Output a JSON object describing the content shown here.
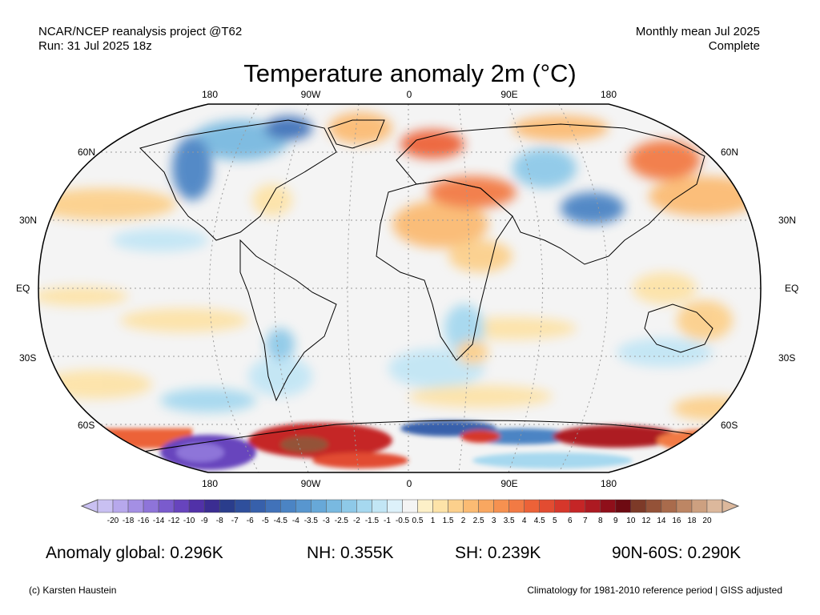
{
  "header": {
    "line1_left": "NCAR/NCEP reanalysis project @T62",
    "line2_left": "Run: 31 Jul 2025 18z",
    "line1_right": "Monthly mean Jul 2025",
    "line2_right": "Complete"
  },
  "title": "Temperature anomaly 2m (°C)",
  "lon_labels": [
    "180",
    "90W",
    "0",
    "90E",
    "180"
  ],
  "lat_labels_left": [
    "60N",
    "30N",
    "EQ",
    "30S",
    "60S"
  ],
  "lat_labels_right": [
    "60N",
    "30N",
    "EQ",
    "30S",
    "60S"
  ],
  "colorbar": {
    "labels": [
      "-20",
      "-18",
      "-16",
      "-14",
      "-12",
      "-10",
      "-9",
      "-8",
      "-7",
      "-6",
      "-5",
      "-4.5",
      "-4",
      "-3.5",
      "-3",
      "-2.5",
      "-2",
      "-1.5",
      "-1",
      "-0.5",
      "0.5",
      "1",
      "1.5",
      "2",
      "2.5",
      "3",
      "3.5",
      "4",
      "4.5",
      "5",
      "6",
      "7",
      "8",
      "9",
      "10",
      "12",
      "14",
      "16",
      "18",
      "20"
    ],
    "colors": [
      "#c9c0f2",
      "#b7a8ec",
      "#a48fe4",
      "#8e74d9",
      "#7a5bcd",
      "#6744bd",
      "#5131a8",
      "#3b2d92",
      "#2a3d8c",
      "#2f4f9c",
      "#3760ab",
      "#4172b9",
      "#4b84c4",
      "#5896cf",
      "#67a8d8",
      "#79b9e0",
      "#8ec9e8",
      "#a6d8ef",
      "#c2e6f5",
      "#ddf1fa",
      "#f4f4f4",
      "#fdf0c8",
      "#fde3a8",
      "#fcd08c",
      "#fbbb73",
      "#f9a760",
      "#f69150",
      "#f27a44",
      "#ec6238",
      "#e24c31",
      "#d6372b",
      "#c52526",
      "#ad1a22",
      "#8f0f1a",
      "#6e0a12",
      "#7d3a28",
      "#945238",
      "#a96b4c",
      "#bd8664",
      "#cda080",
      "#dcb89c"
    ]
  },
  "stats": {
    "global": "Anomaly global: 0.296K",
    "nh": "NH: 0.355K",
    "sh": "SH: 0.239K",
    "polar": "90N-60S: 0.290K"
  },
  "footer": {
    "left": "(c) Karsten Haustein",
    "right": "Climatology for 1981-2010 reference period | GISS adjusted"
  }
}
